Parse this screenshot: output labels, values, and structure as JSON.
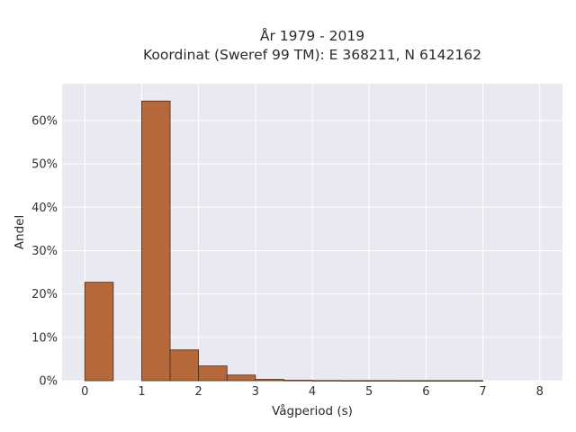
{
  "chart_data": {
    "type": "bar",
    "title_line1": "År 1979 - 2019",
    "title_line2": "Koordinat (Sweref 99 TM): E 368211, N 6142162",
    "xlabel": "Vågperiod (s)",
    "ylabel": "Andel",
    "xlim": [
      -0.4,
      8.4
    ],
    "ylim": [
      0,
      0.685
    ],
    "xticks": [
      0,
      1,
      2,
      3,
      4,
      5,
      6,
      7,
      8
    ],
    "xtick_labels": [
      "0",
      "1",
      "2",
      "3",
      "4",
      "5",
      "6",
      "7",
      "8"
    ],
    "yticks": [
      0,
      0.1,
      0.2,
      0.3,
      0.4,
      0.5,
      0.6
    ],
    "ytick_labels": [
      "0%",
      "10%",
      "20%",
      "30%",
      "40%",
      "50%",
      "60%"
    ],
    "bin_width": 0.5,
    "bins": [
      {
        "x0": 0.0,
        "value": 0.227
      },
      {
        "x0": 0.5,
        "value": 0.0
      },
      {
        "x0": 1.0,
        "value": 0.645
      },
      {
        "x0": 1.5,
        "value": 0.071
      },
      {
        "x0": 2.0,
        "value": 0.034
      },
      {
        "x0": 2.5,
        "value": 0.013
      },
      {
        "x0": 3.0,
        "value": 0.003
      },
      {
        "x0": 3.5,
        "value": 0.001
      },
      {
        "x0": 4.0,
        "value": 0.0005
      },
      {
        "x0": 4.5,
        "value": 0.0003
      },
      {
        "x0": 5.0,
        "value": 0.0003
      },
      {
        "x0": 5.5,
        "value": 0.0002
      },
      {
        "x0": 6.0,
        "value": 0.0002
      },
      {
        "x0": 6.5,
        "value": 0.0002
      }
    ],
    "grid": true,
    "colors": {
      "bar_fill": "#b5693b",
      "bar_edge": "#4a2a17",
      "plot_bg": "#e9e9f1",
      "grid": "#ffffff"
    }
  }
}
